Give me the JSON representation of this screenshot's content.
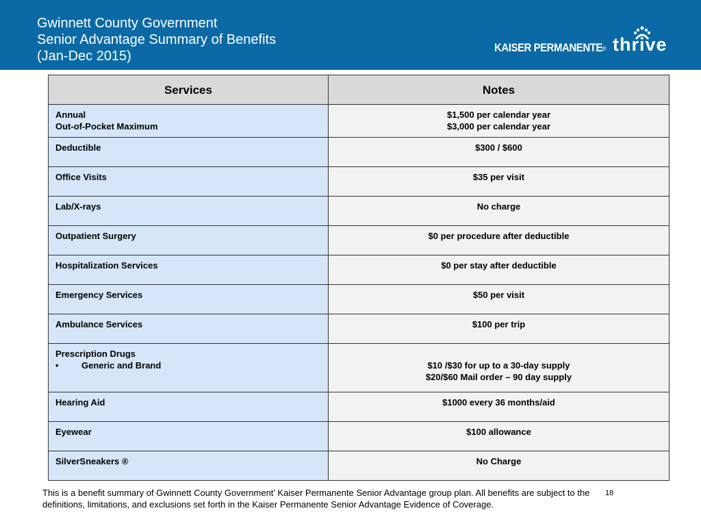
{
  "header": {
    "title_lines": [
      "Gwinnett County Government",
      "Senior Advantage Summary of Benefits",
      "(Jan-Dec 2015)"
    ],
    "logo": {
      "brand": "KAISER PERMANENTE",
      "mark": "®",
      "tagline": "thrive"
    }
  },
  "table": {
    "columns": [
      "Services",
      "Notes"
    ],
    "rows": [
      {
        "service": [
          "Annual",
          "Out-of-Pocket Maximum"
        ],
        "notes": [
          "$1,500 per calendar year",
          "$3,000 per calendar year"
        ]
      },
      {
        "service": [
          "Deductible"
        ],
        "notes": [
          "$300 / $600"
        ]
      },
      {
        "service": [
          "Office Visits"
        ],
        "notes": [
          "$35 per visit"
        ]
      },
      {
        "service": [
          "Lab/X-rays"
        ],
        "notes": [
          "No charge"
        ]
      },
      {
        "service": [
          "Outpatient Surgery"
        ],
        "notes": [
          "$0 per procedure after deductible"
        ]
      },
      {
        "service": [
          "Hospitalization Services"
        ],
        "notes": [
          "$0 per stay after deductible"
        ]
      },
      {
        "service": [
          "Emergency Services"
        ],
        "notes": [
          "$50 per visit"
        ]
      },
      {
        "service": [
          "Ambulance Services"
        ],
        "notes": [
          "$100 per trip"
        ]
      },
      {
        "service": [
          "Prescription Drugs"
        ],
        "sub": [
          "Generic and Brand"
        ],
        "notes": [
          "$10 /$30 for up to a 30-day supply",
          "$20/$60 Mail order – 90 day supply"
        ]
      },
      {
        "service": [
          "Hearing Aid"
        ],
        "notes": [
          "$1000 every 36 months/aid"
        ]
      },
      {
        "service": [
          "Eyewear"
        ],
        "notes": [
          "$100 allowance"
        ]
      },
      {
        "service": [
          "SilverSneakers ®"
        ],
        "notes": [
          "No Charge"
        ]
      }
    ]
  },
  "footer": {
    "text": "This is a benefit summary of Gwinnett County Government’ Kaiser Permanente Senior Advantage group plan. All benefits are subject to the definitions, limitations, and exclusions set forth in the Kaiser Permanente Senior Advantage Evidence of Coverage.",
    "page_number": "18"
  }
}
